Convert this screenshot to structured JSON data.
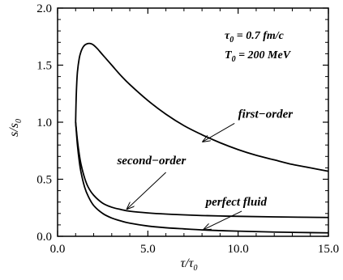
{
  "chart_data": {
    "type": "line",
    "xlabel": "τ/τ",
    "xlabel_sub": "0",
    "ylabel": "s/s",
    "ylabel_sub": "0",
    "xlim": [
      0.0,
      15.0
    ],
    "ylim": [
      0.0,
      2.0
    ],
    "xticks": [
      0.0,
      5.0,
      10.0,
      15.0
    ],
    "xtick_labels": [
      "0.0",
      "5.0",
      "10.0",
      "15.0"
    ],
    "yticks": [
      0.0,
      0.5,
      1.0,
      1.5,
      2.0
    ],
    "ytick_labels": [
      "0.0",
      "0.5",
      "1.0",
      "1.5",
      "2.0"
    ],
    "grid": false,
    "params": [
      {
        "sym": "τ",
        "sub": "0",
        "rest": " = 0.7 fm/c"
      },
      {
        "sym": "T",
        "sub": "0",
        "rest": " = 200 MeV"
      }
    ],
    "series": [
      {
        "name": "first−order",
        "x": [
          1.0,
          1.02,
          1.05,
          1.1,
          1.2,
          1.3,
          1.4,
          1.5,
          1.6,
          1.7,
          1.8,
          1.9,
          2.0,
          2.2,
          2.5,
          3.0,
          3.5,
          4.0,
          5.0,
          6.0,
          7.0,
          8.0,
          9.0,
          10.0,
          11.0,
          12.0,
          13.0,
          14.0,
          15.0
        ],
        "y": [
          1.0,
          1.15,
          1.3,
          1.44,
          1.56,
          1.62,
          1.655,
          1.675,
          1.685,
          1.69,
          1.69,
          1.685,
          1.675,
          1.645,
          1.59,
          1.5,
          1.41,
          1.33,
          1.19,
          1.07,
          0.97,
          0.89,
          0.82,
          0.76,
          0.71,
          0.67,
          0.63,
          0.6,
          0.57
        ]
      },
      {
        "name": "second−order",
        "x": [
          1.0,
          1.1,
          1.2,
          1.3,
          1.5,
          1.7,
          2.0,
          2.5,
          3.0,
          3.5,
          4.0,
          5.0,
          6.0,
          7.0,
          8.0,
          9.0,
          10.0,
          12.0,
          15.0
        ],
        "y": [
          1.0,
          0.84,
          0.72,
          0.63,
          0.51,
          0.43,
          0.36,
          0.29,
          0.255,
          0.235,
          0.22,
          0.205,
          0.195,
          0.188,
          0.182,
          0.178,
          0.175,
          0.17,
          0.165
        ]
      },
      {
        "name": "perfect fluid",
        "x": [
          1.0,
          1.1,
          1.2,
          1.3,
          1.5,
          1.7,
          2.0,
          2.5,
          3.0,
          3.5,
          4.0,
          5.0,
          6.0,
          7.0,
          8.0,
          9.0,
          10.0,
          12.0,
          15.0
        ],
        "y": [
          1.0,
          0.8,
          0.66,
          0.56,
          0.43,
          0.35,
          0.27,
          0.2,
          0.16,
          0.135,
          0.115,
          0.09,
          0.075,
          0.065,
          0.056,
          0.05,
          0.045,
          0.037,
          0.03
        ]
      }
    ],
    "annotations": [
      {
        "series": "first−order",
        "text": "first−order",
        "text_x": 10.0,
        "text_y": 1.04,
        "arrow_from": [
          9.8,
          0.99
        ],
        "arrow_to": [
          8.05,
          0.83
        ]
      },
      {
        "series": "second−order",
        "text": "second−order",
        "text_x": 3.3,
        "text_y": 0.63,
        "arrow_from": [
          6.0,
          0.56
        ],
        "arrow_to": [
          3.85,
          0.24
        ]
      },
      {
        "series": "perfect fluid",
        "text": "perfect fluid",
        "text_x": 8.2,
        "text_y": 0.27,
        "arrow_from": [
          10.2,
          0.22
        ],
        "arrow_to": [
          8.1,
          0.06
        ]
      }
    ]
  }
}
